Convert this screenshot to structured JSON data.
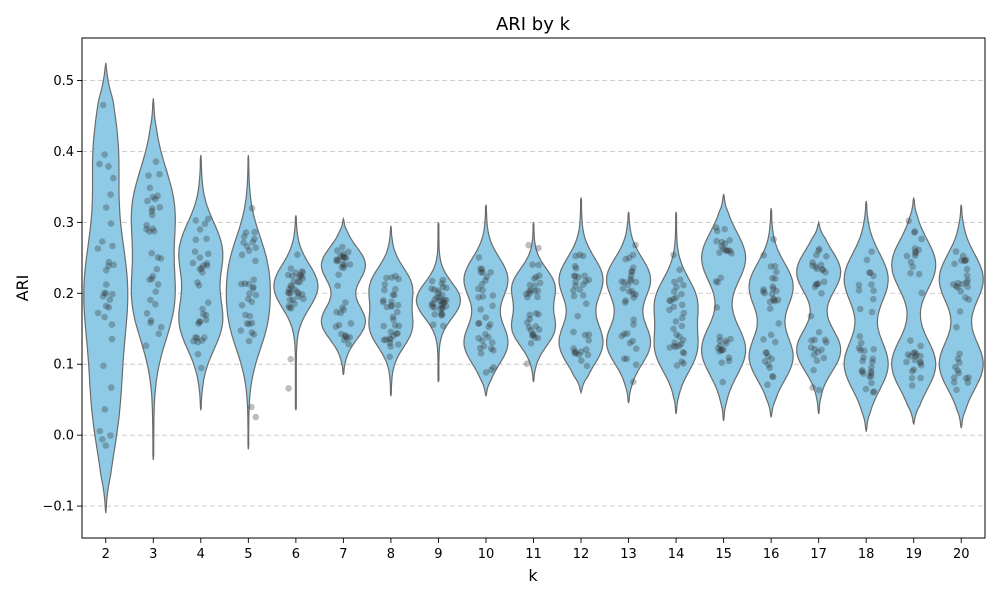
{
  "chart_data": {
    "type": "violin",
    "title": "ARI by k",
    "xlabel": "k",
    "ylabel": "ARI",
    "ylim": [
      -0.145,
      0.56
    ],
    "yticks": [
      -0.1,
      0.0,
      0.1,
      0.2,
      0.3,
      0.4,
      0.5
    ],
    "ytick_labels": [
      "−0.1",
      "0.0",
      "0.1",
      "0.2",
      "0.3",
      "0.4",
      "0.5"
    ],
    "grid": "y-dashed",
    "categories": [
      "2",
      "3",
      "4",
      "5",
      "6",
      "7",
      "8",
      "9",
      "10",
      "11",
      "12",
      "13",
      "14",
      "15",
      "16",
      "17",
      "18",
      "19",
      "20"
    ],
    "distributions": [
      {
        "k": "2",
        "min": -0.11,
        "max": 0.525,
        "modes": [
          0.04,
          0.17,
          0.24,
          0.4
        ],
        "median": 0.17
      },
      {
        "k": "3",
        "min": -0.035,
        "max": 0.475,
        "modes": [
          0.19,
          0.32
        ],
        "median": 0.19
      },
      {
        "k": "4",
        "min": 0.035,
        "max": 0.395,
        "modes": [
          0.16,
          0.26
        ],
        "median": 0.22
      },
      {
        "k": "5",
        "min": -0.02,
        "max": 0.395,
        "modes": [
          0.16,
          0.24
        ],
        "median": 0.22
      },
      {
        "k": "6",
        "min": 0.035,
        "max": 0.31,
        "modes": [
          0.21
        ],
        "median": 0.2
      },
      {
        "k": "7",
        "min": 0.085,
        "max": 0.305,
        "modes": [
          0.16,
          0.24
        ],
        "median": 0.2
      },
      {
        "k": "8",
        "min": 0.055,
        "max": 0.295,
        "modes": [
          0.15,
          0.21
        ],
        "median": 0.17
      },
      {
        "k": "9",
        "min": 0.075,
        "max": 0.3,
        "modes": [
          0.19
        ],
        "median": 0.18
      },
      {
        "k": "10",
        "min": 0.055,
        "max": 0.325,
        "modes": [
          0.13,
          0.22
        ],
        "median": 0.18
      },
      {
        "k": "11",
        "min": 0.075,
        "max": 0.3,
        "modes": [
          0.15,
          0.21
        ],
        "median": 0.18
      },
      {
        "k": "12",
        "min": 0.06,
        "max": 0.335,
        "modes": [
          0.13,
          0.22
        ],
        "median": 0.18
      },
      {
        "k": "13",
        "min": 0.045,
        "max": 0.315,
        "modes": [
          0.13,
          0.22
        ],
        "median": 0.16
      },
      {
        "k": "14",
        "min": 0.03,
        "max": 0.315,
        "modes": [
          0.12,
          0.19
        ],
        "median": 0.15
      },
      {
        "k": "15",
        "min": 0.02,
        "max": 0.34,
        "modes": [
          0.12,
          0.25
        ],
        "median": 0.16
      },
      {
        "k": "16",
        "min": 0.025,
        "max": 0.32,
        "modes": [
          0.11,
          0.21
        ],
        "median": 0.15
      },
      {
        "k": "17",
        "min": 0.03,
        "max": 0.3,
        "modes": [
          0.12,
          0.23
        ],
        "median": 0.14
      },
      {
        "k": "18",
        "min": 0.005,
        "max": 0.33,
        "modes": [
          0.1,
          0.22
        ],
        "median": 0.14
      },
      {
        "k": "19",
        "min": 0.015,
        "max": 0.335,
        "modes": [
          0.1,
          0.24
        ],
        "median": 0.13
      },
      {
        "k": "20",
        "min": 0.01,
        "max": 0.325,
        "modes": [
          0.1,
          0.22
        ],
        "median": 0.14
      }
    ]
  },
  "colors": {
    "violin_fill": "#8ecae6",
    "violin_edge": "#6b6b6b",
    "points": "#333333",
    "grid": "#c8c8c8"
  }
}
